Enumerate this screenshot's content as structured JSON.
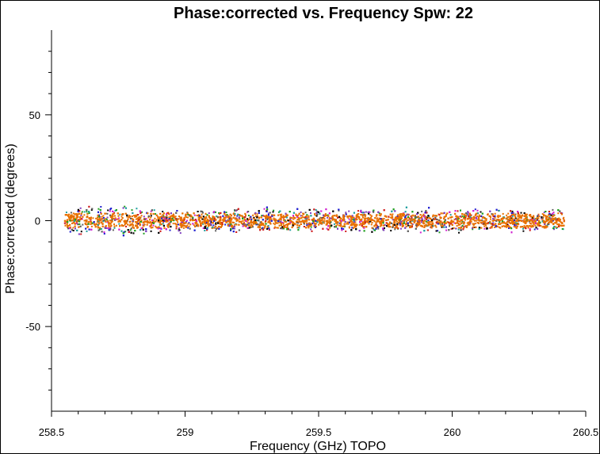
{
  "chart_data": {
    "type": "scatter",
    "title": "Phase:corrected vs. Frequency Spw: 22",
    "xlabel": "Frequency (GHz) TOPO",
    "ylabel": "Phase:corrected (degrees)",
    "xlim": [
      258.5,
      260.5
    ],
    "ylim": [
      -90,
      90
    ],
    "xticks": [
      258.5,
      259,
      259.5,
      260,
      260.5
    ],
    "xtick_labels": [
      "258.5",
      "259",
      "259.5",
      "260",
      "260.5"
    ],
    "yticks": [
      -50,
      0,
      50
    ],
    "ytick_labels": [
      "-50",
      "0",
      "50"
    ],
    "grid": false,
    "legend": false,
    "series_colors": [
      "#e87000",
      "#2020d0",
      "#20a020",
      "#d020d0",
      "#d02020",
      "#20a0a0",
      "#606060",
      "#8040c0",
      "#000000"
    ],
    "series": [
      {
        "x_range": [
          258.55,
          260.42
        ],
        "y_center": 0,
        "y_spread": [
          -7,
          8
        ],
        "note_visible_band": "dense multicolored points around 0 degrees"
      }
    ]
  }
}
